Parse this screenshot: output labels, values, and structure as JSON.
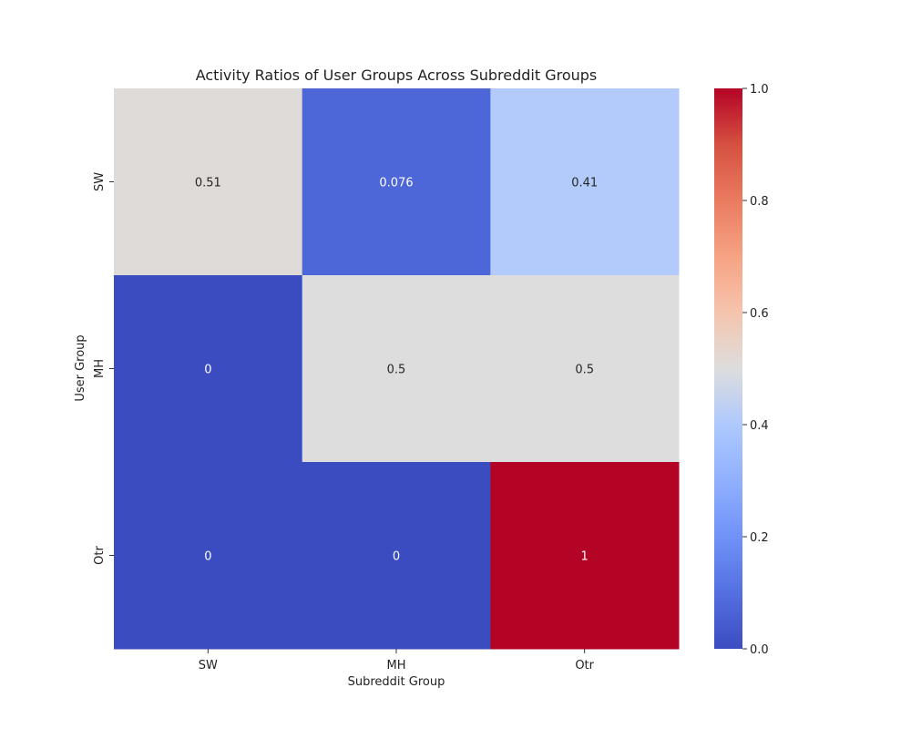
{
  "chart_data": {
    "type": "heatmap",
    "title": "Activity Ratios of User Groups Across Subreddit Groups",
    "xlabel": "Subreddit Group",
    "ylabel": "User Group",
    "x_categories": [
      "SW",
      "MH",
      "Otr"
    ],
    "y_categories": [
      "SW",
      "MH",
      "Otr"
    ],
    "values": [
      [
        0.51,
        0.076,
        0.41
      ],
      [
        0,
        0.5,
        0.5
      ],
      [
        0,
        0,
        1
      ]
    ],
    "cell_labels": [
      [
        "0.51",
        "0.076",
        "0.41"
      ],
      [
        "0",
        "0.5",
        "0.5"
      ],
      [
        "0",
        "0",
        "1"
      ]
    ],
    "colorscale": "coolwarm",
    "colorbar": {
      "range": [
        0.0,
        1.0
      ],
      "ticks": [
        0.0,
        0.2,
        0.4,
        0.6,
        0.8,
        1.0
      ],
      "tick_labels": [
        "0.0",
        "0.2",
        "0.4",
        "0.6",
        "0.8",
        "1.0"
      ]
    },
    "colors": {
      "low": "#3b4cc0",
      "mid": "#dddddd",
      "high": "#b40426"
    }
  }
}
